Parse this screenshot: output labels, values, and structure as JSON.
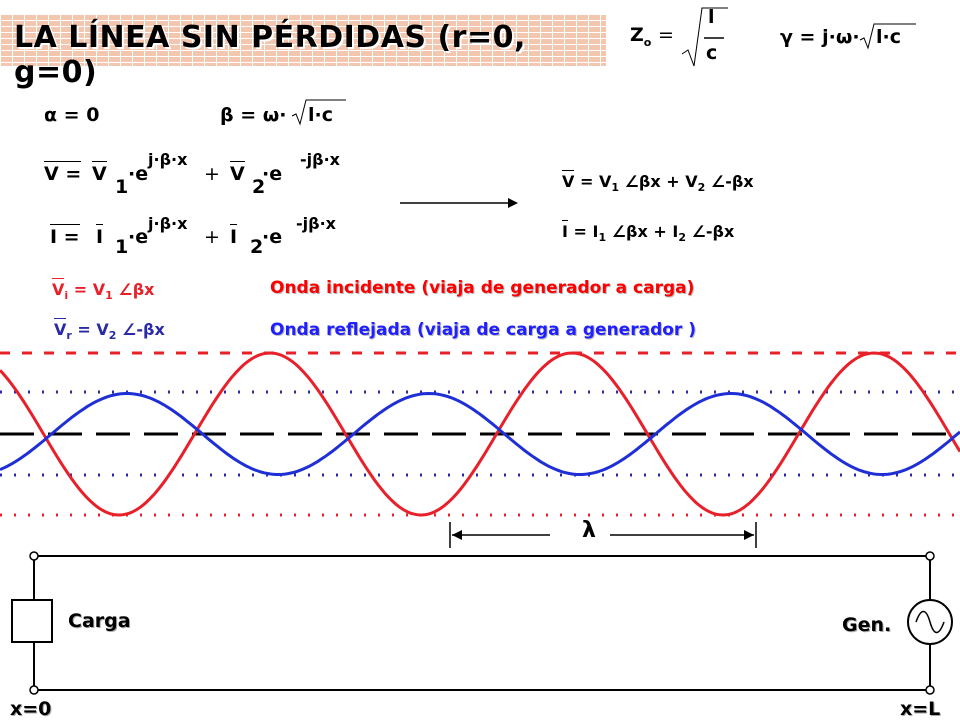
{
  "title": "LA LÍNEA SIN PÉRDIDAS (r=0, g=0)",
  "formulas": {
    "zo_label": "Z",
    "zo_sub": "o",
    "zo_num": "l",
    "zo_den": "c",
    "gamma": "γ = j·ω·",
    "gamma_root": "l·c",
    "alpha": "α = 0",
    "beta": "β = ω·",
    "beta_root": "l·c",
    "v_eq_left": "V =",
    "v_term1": "V",
    "v_sub1": "1",
    "v_e1": "·e",
    "v_exp1": "j·β·x",
    "v_plus": "+",
    "v_term2": "V",
    "v_sub2": "2",
    "v_e2": "·e",
    "v_exp2": "-jβ·x",
    "i_eq_left": "I =",
    "i_term1": "I",
    "i_sub1": "1",
    "i_e1": "·e",
    "i_exp1": "j·β·x",
    "i_plus": "+",
    "i_term2": "I",
    "i_sub2": "2",
    "i_e2": "·e",
    "i_exp2": "-jβ·x",
    "phasor_v": {
      "a": "V",
      "b": "= V",
      "s1": "1",
      "c": "∠βx + V",
      "s2": "2",
      "d": "∠-βx"
    },
    "phasor_i": {
      "a": "I",
      "b": "= I",
      "s1": "1",
      "c": "∠βx + I",
      "s2": "2",
      "d": "∠-βx"
    },
    "vi": {
      "a": "V",
      "sa": "i",
      "b": "= V",
      "s1": "1",
      "c": "∠βx"
    },
    "vr": {
      "a": "V",
      "sa": "r",
      "b": "= V",
      "s2": "2",
      "c": "∠-βx"
    }
  },
  "labels": {
    "incident": "Onda incidente (viaja de generador a carga)",
    "reflected": "Onda reflejada (viaja de carga a generador )",
    "lambda": "λ",
    "load": "Carga",
    "generator": "Gen.",
    "x0": "x=0",
    "xL": "x=L"
  },
  "colors": {
    "incident_wave": "#e8202a",
    "reflected_wave": "#1f2fd6",
    "axis": "#000000"
  },
  "waves": {
    "red_amplitude": 1.0,
    "blue_amplitude": 0.5
  }
}
